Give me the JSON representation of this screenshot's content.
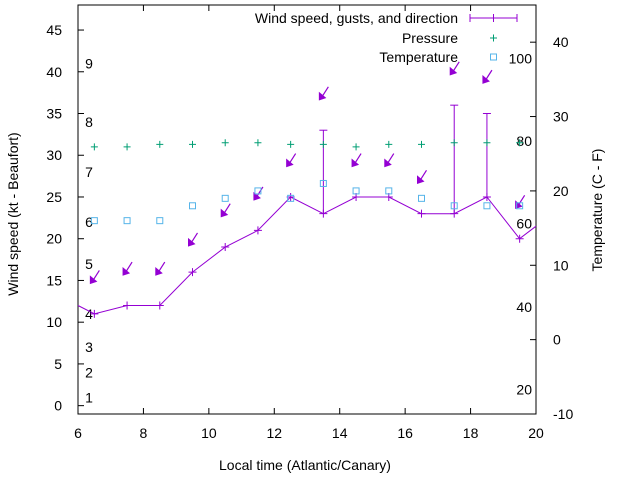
{
  "chart_data": {
    "type": "line",
    "title": "",
    "xlabel": "Local time (Atlantic/Canary)",
    "ylabel": "Wind speed (kt - Beaufort)",
    "y2label": "Temperature (C - F)",
    "xlim": [
      6,
      20
    ],
    "ylim": [
      -1,
      48
    ],
    "y2lim": [
      -10,
      45
    ],
    "x_ticks": [
      6,
      8,
      10,
      12,
      14,
      16,
      18,
      20
    ],
    "y_ticks": [
      0,
      5,
      10,
      15,
      20,
      25,
      30,
      35,
      40,
      45
    ],
    "y2_ticks": [
      -10,
      0,
      10,
      20,
      30,
      40
    ],
    "beaufort_labels": [
      {
        "label": "1",
        "value": 1
      },
      {
        "label": "2",
        "value": 4
      },
      {
        "label": "3",
        "value": 7
      },
      {
        "label": "4",
        "value": 11
      },
      {
        "label": "5",
        "value": 17
      },
      {
        "label": "6",
        "value": 22
      },
      {
        "label": "7",
        "value": 28
      },
      {
        "label": "8",
        "value": 34
      },
      {
        "label": "9",
        "value": 41
      }
    ],
    "fahrenheit_labels": [
      {
        "label": "20",
        "value": -6.7
      },
      {
        "label": "40",
        "value": 4.4
      },
      {
        "label": "60",
        "value": 15.6
      },
      {
        "label": "80",
        "value": 26.7
      },
      {
        "label": "100",
        "value": 37.8
      }
    ],
    "legend_position": "top-right",
    "grid": false,
    "series": [
      {
        "name": "Wind speed, gusts, and direction",
        "color": "#9400d3",
        "x": [
          6,
          6.5,
          7.5,
          8.5,
          9.5,
          10.5,
          11.5,
          12.5,
          13.5,
          14.5,
          15.5,
          16.5,
          17.5,
          18.5,
          19.5,
          20
        ],
        "values": [
          12,
          11,
          12,
          12,
          16,
          19,
          21,
          25,
          23,
          25,
          25,
          23,
          23,
          25,
          20,
          21.5
        ],
        "gusts": [
          null,
          null,
          null,
          null,
          null,
          null,
          null,
          null,
          33,
          null,
          null,
          null,
          36,
          35,
          null,
          null
        ],
        "arrows": [
          {
            "x": 6.5,
            "y": 15
          },
          {
            "x": 7.5,
            "y": 16
          },
          {
            "x": 8.5,
            "y": 16
          },
          {
            "x": 9.5,
            "y": 19.5
          },
          {
            "x": 10.5,
            "y": 23
          },
          {
            "x": 11.5,
            "y": 25
          },
          {
            "x": 12.5,
            "y": 29
          },
          {
            "x": 13.5,
            "y": 37
          },
          {
            "x": 14.5,
            "y": 29
          },
          {
            "x": 15.5,
            "y": 29
          },
          {
            "x": 16.5,
            "y": 27
          },
          {
            "x": 17.5,
            "y": 40
          },
          {
            "x": 18.5,
            "y": 39
          },
          {
            "x": 19.5,
            "y": 24
          }
        ]
      },
      {
        "name": "Pressure",
        "color": "#009e73",
        "marker": "plus",
        "x": [
          6.5,
          7.5,
          8.5,
          9.5,
          10.5,
          11.5,
          12.5,
          13.5,
          14.5,
          15.5,
          16.5,
          17.5,
          18.5,
          19.5
        ],
        "values": [
          31,
          31,
          31.3,
          31.3,
          31.5,
          31.5,
          31.3,
          31.3,
          31,
          31.3,
          31.3,
          31.5,
          31.5,
          31.5
        ]
      },
      {
        "name": "Temperature",
        "color": "#56b4e9",
        "marker": "square",
        "axis": "y2",
        "x": [
          6.5,
          7.5,
          8.5,
          9.5,
          10.5,
          11.5,
          12.5,
          13.5,
          14.5,
          15.5,
          16.5,
          17.5,
          18.5,
          19.5
        ],
        "values": [
          16,
          16,
          16,
          18,
          19,
          20,
          19,
          21,
          20,
          20,
          19,
          18,
          18,
          18
        ]
      }
    ]
  }
}
